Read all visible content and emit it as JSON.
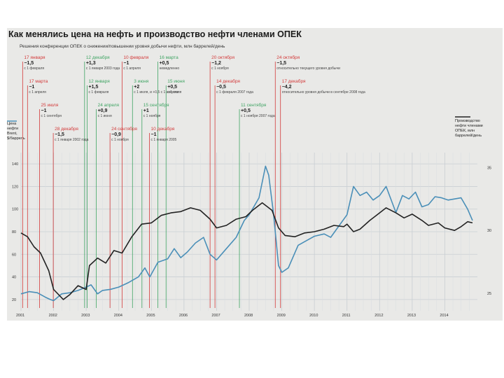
{
  "chart_data": {
    "type": "line",
    "title": "Как менялись цена на нефть и производство нефти членами ОПЕК",
    "subtitle": "Решения конференции ОПЕК о снижении/повышении уровня добычи нефти, млн баррелей/день",
    "ylabel_left": "Цена нефти Brent, $/баррель",
    "ylabel_right": "Производство нефти членами ОПЕК, млн баррелей/день",
    "left_axis": {
      "ticks": [
        20,
        40,
        60,
        80,
        100,
        120,
        140
      ],
      "range": [
        10,
        150
      ]
    },
    "right_axis": {
      "ticks": [
        25,
        30,
        35
      ],
      "range": [
        23.6,
        36.2
      ]
    },
    "x_ticks": [
      "2001",
      "2002",
      "2003",
      "2004",
      "2005",
      "2006",
      "2007",
      "2008",
      "2009",
      "2010",
      "2011",
      "2012",
      "2013",
      "2014"
    ],
    "x_range": [
      2001.0,
      2015.0
    ],
    "grid": true,
    "colors": {
      "price": "#4a8fb8",
      "production": "#222222",
      "cut": "#d33a3a",
      "raise": "#3fa463"
    },
    "series": [
      {
        "name": "Цена нефти Brent, $/баррель",
        "axis": "left",
        "points": [
          [
            2001.0,
            25
          ],
          [
            2001.25,
            27
          ],
          [
            2001.5,
            26
          ],
          [
            2001.75,
            22
          ],
          [
            2001.9,
            20
          ],
          [
            2002.0,
            19
          ],
          [
            2002.25,
            25
          ],
          [
            2002.5,
            26
          ],
          [
            2002.75,
            28
          ],
          [
            2003.0,
            31
          ],
          [
            2003.15,
            33
          ],
          [
            2003.35,
            25
          ],
          [
            2003.5,
            28
          ],
          [
            2003.75,
            29
          ],
          [
            2004.0,
            31
          ],
          [
            2004.3,
            35
          ],
          [
            2004.6,
            40
          ],
          [
            2004.8,
            48
          ],
          [
            2004.95,
            40
          ],
          [
            2005.2,
            53
          ],
          [
            2005.5,
            56
          ],
          [
            2005.7,
            65
          ],
          [
            2005.9,
            57
          ],
          [
            2006.1,
            62
          ],
          [
            2006.35,
            70
          ],
          [
            2006.6,
            75
          ],
          [
            2006.8,
            60
          ],
          [
            2007.0,
            55
          ],
          [
            2007.3,
            65
          ],
          [
            2007.6,
            75
          ],
          [
            2007.85,
            90
          ],
          [
            2008.0,
            95
          ],
          [
            2008.3,
            110
          ],
          [
            2008.5,
            138
          ],
          [
            2008.6,
            130
          ],
          [
            2008.75,
            95
          ],
          [
            2008.9,
            50
          ],
          [
            2009.0,
            44
          ],
          [
            2009.2,
            48
          ],
          [
            2009.5,
            68
          ],
          [
            2009.75,
            72
          ],
          [
            2010.0,
            76
          ],
          [
            2010.3,
            78
          ],
          [
            2010.5,
            75
          ],
          [
            2010.75,
            85
          ],
          [
            2011.0,
            95
          ],
          [
            2011.2,
            120
          ],
          [
            2011.4,
            112
          ],
          [
            2011.6,
            115
          ],
          [
            2011.8,
            108
          ],
          [
            2012.0,
            112
          ],
          [
            2012.2,
            120
          ],
          [
            2012.5,
            97
          ],
          [
            2012.7,
            112
          ],
          [
            2012.9,
            109
          ],
          [
            2013.1,
            115
          ],
          [
            2013.3,
            102
          ],
          [
            2013.5,
            104
          ],
          [
            2013.7,
            111
          ],
          [
            2013.9,
            110
          ],
          [
            2014.1,
            108
          ],
          [
            2014.3,
            109
          ],
          [
            2014.5,
            110
          ],
          [
            2014.7,
            100
          ],
          [
            2014.85,
            90
          ]
        ]
      },
      {
        "name": "Производство нефти членами ОПЕК, млн баррелей/день",
        "axis": "right",
        "points": [
          [
            2001.0,
            29.8
          ],
          [
            2001.2,
            29.5
          ],
          [
            2001.4,
            28.7
          ],
          [
            2001.6,
            28.2
          ],
          [
            2001.85,
            26.8
          ],
          [
            2002.0,
            25.3
          ],
          [
            2002.3,
            24.5
          ],
          [
            2002.5,
            24.9
          ],
          [
            2002.75,
            25.6
          ],
          [
            2003.0,
            25.3
          ],
          [
            2003.1,
            27.2
          ],
          [
            2003.35,
            27.8
          ],
          [
            2003.6,
            27.4
          ],
          [
            2003.85,
            28.4
          ],
          [
            2004.1,
            28.2
          ],
          [
            2004.4,
            29.5
          ],
          [
            2004.7,
            30.5
          ],
          [
            2005.0,
            30.6
          ],
          [
            2005.3,
            31.2
          ],
          [
            2005.6,
            31.4
          ],
          [
            2005.9,
            31.5
          ],
          [
            2006.2,
            31.8
          ],
          [
            2006.5,
            31.6
          ],
          [
            2006.8,
            30.9
          ],
          [
            2007.0,
            30.2
          ],
          [
            2007.3,
            30.4
          ],
          [
            2007.6,
            30.9
          ],
          [
            2007.9,
            31.1
          ],
          [
            2008.1,
            31.6
          ],
          [
            2008.4,
            32.2
          ],
          [
            2008.7,
            31.6
          ],
          [
            2008.9,
            30.2
          ],
          [
            2009.1,
            29.6
          ],
          [
            2009.4,
            29.5
          ],
          [
            2009.7,
            29.8
          ],
          [
            2010.0,
            29.9
          ],
          [
            2010.3,
            30.1
          ],
          [
            2010.6,
            30.4
          ],
          [
            2010.9,
            30.3
          ],
          [
            2011.0,
            30.5
          ],
          [
            2011.2,
            29.9
          ],
          [
            2011.4,
            30.1
          ],
          [
            2011.7,
            30.8
          ],
          [
            2011.9,
            31.2
          ],
          [
            2012.2,
            31.8
          ],
          [
            2012.5,
            31.4
          ],
          [
            2012.75,
            31.0
          ],
          [
            2013.0,
            31.3
          ],
          [
            2013.3,
            30.8
          ],
          [
            2013.5,
            30.4
          ],
          [
            2013.8,
            30.6
          ],
          [
            2014.0,
            30.2
          ],
          [
            2014.3,
            30.0
          ],
          [
            2014.5,
            30.3
          ],
          [
            2014.7,
            30.7
          ],
          [
            2014.85,
            30.6
          ]
        ]
      }
    ],
    "events": [
      {
        "date": "17 января",
        "change": "−1,5",
        "note": "с 1 февраля",
        "x": 2001.05,
        "kind": "cut",
        "row": 0
      },
      {
        "date": "12 декабря",
        "change": "+1,3",
        "note": "с 1 января 2003 года",
        "x": 2002.95,
        "kind": "raise",
        "row": 0
      },
      {
        "date": "10 февраля",
        "change": "−1",
        "note": "с 1 апреля",
        "x": 2004.1,
        "kind": "cut",
        "row": 0
      },
      {
        "date": "16 марта",
        "change": "+0,5",
        "note": "немедленно",
        "x": 2005.2,
        "kind": "raise",
        "row": 0
      },
      {
        "date": "20 октября",
        "change": "−1,2",
        "note": "с 1 ноября",
        "x": 2006.8,
        "kind": "cut",
        "row": 0
      },
      {
        "date": "24 октября",
        "change": "−1,5",
        "note": "относительно текущего уровня добычи",
        "x": 2008.8,
        "kind": "cut",
        "row": 0
      },
      {
        "date": "17 марта",
        "change": "−1",
        "note": "с 1 апреля",
        "x": 2001.2,
        "kind": "cut",
        "row": 1
      },
      {
        "date": "12 января",
        "change": "+1,5",
        "note": "с 1 февраля",
        "x": 2003.03,
        "kind": "raise",
        "row": 1
      },
      {
        "date": "3 июня",
        "change": "+2",
        "note": "с 1 июля, и +0,5 с 1 августа",
        "x": 2004.42,
        "kind": "raise",
        "row": 1
      },
      {
        "date": "15 июня",
        "change": "+0,5",
        "note": "с 1 июля",
        "x": 2005.45,
        "kind": "raise",
        "row": 1
      },
      {
        "date": "14 декабря",
        "change": "−0,5",
        "note": "с 1 февраля 2007 года",
        "x": 2006.95,
        "kind": "cut",
        "row": 1
      },
      {
        "date": "17 декабря",
        "change": "−4,2",
        "note": "относительно уровня добычи в сентябре 2008 года",
        "x": 2008.96,
        "kind": "cut",
        "row": 1
      },
      {
        "date": "25 июля",
        "change": "−1",
        "note": "с 1 сентября",
        "x": 2001.57,
        "kind": "cut",
        "row": 2
      },
      {
        "date": "24 апреля",
        "change": "+0,9",
        "note": "с 1 июня",
        "x": 2003.31,
        "kind": "raise",
        "row": 2
      },
      {
        "date": "15 сентября",
        "change": "+1",
        "note": "с 1 ноября",
        "x": 2004.71,
        "kind": "raise",
        "row": 2
      },
      {
        "date": "11 сентября",
        "change": "+0,5",
        "note": "с 1 ноября 2007 года",
        "x": 2007.7,
        "kind": "raise",
        "row": 2
      },
      {
        "date": "28 декабря",
        "change": "−1,5",
        "note": "с 1 января 2002 года",
        "x": 2001.99,
        "kind": "cut",
        "row": 3
      },
      {
        "date": "24 сентября",
        "change": "−0,9",
        "note": "с 1 ноября",
        "x": 2003.73,
        "kind": "cut",
        "row": 3
      },
      {
        "date": "10 декабря",
        "change": "−1",
        "note": "с 1 января 2005",
        "x": 2004.94,
        "kind": "cut",
        "row": 3
      }
    ]
  }
}
